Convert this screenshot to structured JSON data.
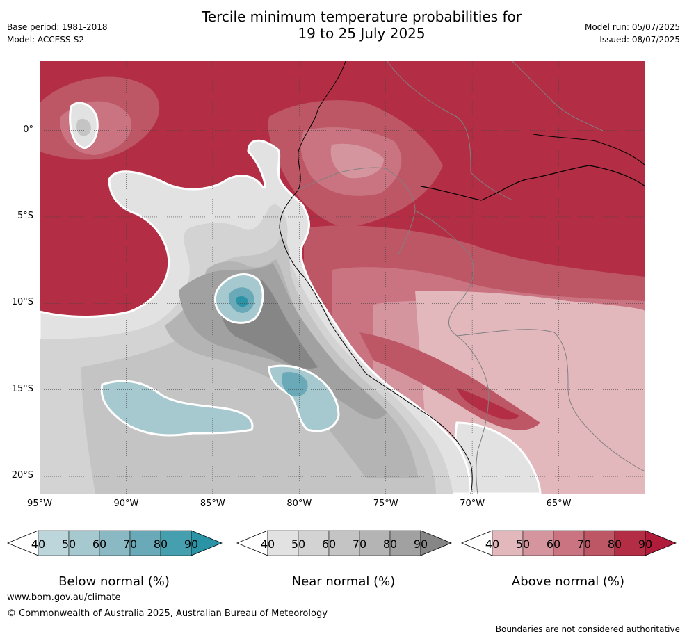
{
  "title": {
    "line1": "Tercile minimum temperature probabilities for",
    "line2": "19 to 25 July 2025"
  },
  "meta_left": {
    "base_period": "Base period: 1981-2018",
    "model": "Model: ACCESS-S2"
  },
  "meta_right": {
    "model_run": "Model run: 05/07/2025",
    "issued": "Issued: 08/07/2025"
  },
  "axes": {
    "lat_labels": [
      "0°",
      "5°S",
      "10°S",
      "15°S",
      "20°S"
    ],
    "lon_labels": [
      "95°W",
      "90°W",
      "85°W",
      "80°W",
      "75°W",
      "70°W",
      "65°W"
    ]
  },
  "legends": [
    {
      "title": "Below normal (%)",
      "ticks": [
        "40",
        "50",
        "60",
        "70",
        "80",
        "90"
      ],
      "colors": [
        "#ffffff",
        "#bcd6db",
        "#a6c8cf",
        "#8ab8c3",
        "#6aa9b7",
        "#469fae",
        "#2a93a5"
      ]
    },
    {
      "title": "Near normal (%)",
      "ticks": [
        "40",
        "50",
        "60",
        "70",
        "80",
        "90"
      ],
      "colors": [
        "#ffffff",
        "#e2e2e2",
        "#d3d3d3",
        "#c4c4c4",
        "#b4b4b4",
        "#a1a1a1",
        "#868686"
      ]
    },
    {
      "title": "Above normal (%)",
      "ticks": [
        "40",
        "50",
        "60",
        "70",
        "80",
        "90"
      ],
      "colors": [
        "#ffffff",
        "#e2b8bd",
        "#d5959f",
        "#c97480",
        "#bd5665",
        "#b32e45",
        "#b01c3a"
      ]
    }
  ],
  "footer": {
    "website": "www.bom.gov.au/climate",
    "copyright": "© Commonwealth of Australia 2025, Australian Bureau of Meteorology",
    "disclaimer": "Boundaries are not considered authoritative"
  },
  "map": {
    "lon_range": [
      -95,
      -60
    ],
    "lat_range": [
      -21,
      4
    ],
    "grid_lons": [
      -90,
      -85,
      -80,
      -75,
      -70,
      -65
    ],
    "grid_lats": [
      0,
      -5,
      -10,
      -15,
      -20
    ],
    "colors": {
      "above_60": "#c97480",
      "above_70": "#bd5665",
      "above_80": "#b32e45",
      "above_90": "#b01c3a",
      "above_40": "#e2b8bd",
      "above_50": "#d5959f",
      "near_40": "#e2e2e2",
      "near_50": "#d3d3d3",
      "near_60": "#c4c4c4",
      "near_70": "#b4b4b4",
      "near_80": "#a1a1a1",
      "near_90": "#868686",
      "below_50": "#a6c8cf",
      "below_70": "#6aa9b7",
      "below_90": "#2a93a5",
      "boundary": "#808080",
      "coast": "#000000"
    }
  }
}
